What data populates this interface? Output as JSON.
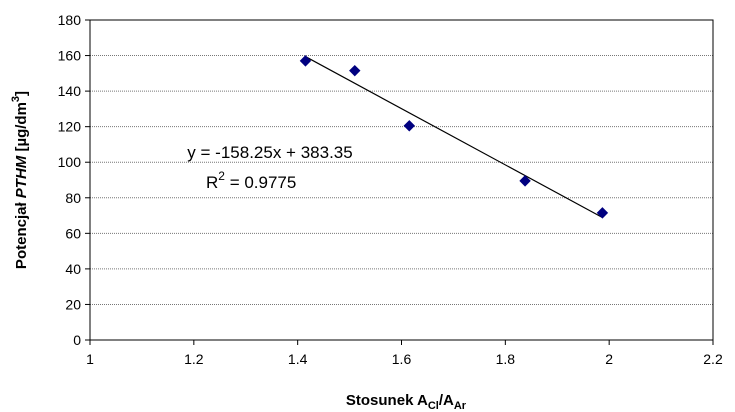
{
  "chart_data": {
    "type": "scatter",
    "x": [
      1.415,
      1.51,
      1.615,
      1.838,
      1.987
    ],
    "y": [
      157,
      151.5,
      120.5,
      89.5,
      71.5
    ],
    "xlim": [
      1,
      2.2
    ],
    "ylim": [
      0,
      180
    ],
    "x_ticks": [
      1,
      1.2,
      1.4,
      1.6,
      1.8,
      2,
      2.2
    ],
    "x_tick_labels": [
      "1",
      "1.2",
      "1.4",
      "1.6",
      "1.8",
      "2",
      "2.2"
    ],
    "y_ticks": [
      0,
      20,
      40,
      60,
      80,
      100,
      120,
      140,
      160,
      180
    ],
    "y_tick_labels": [
      "0",
      "20",
      "40",
      "60",
      "80",
      "100",
      "120",
      "140",
      "160",
      "180"
    ],
    "xlabel": {
      "main": "Stosunek A",
      "sub1": "Cl",
      "mid": "/A",
      "sub2": "Ar"
    },
    "ylabel": {
      "pre": "Potencjał ",
      "italic": "PTHM",
      "post": " [µg/dm",
      "sup": "3",
      "end": "]"
    },
    "grid": {
      "horizontal": true,
      "vertical": false
    },
    "marker": {
      "shape": "diamond",
      "color": "#000080"
    },
    "trendline": {
      "slope": -158.25,
      "intercept": 383.35,
      "x_from": 1.415,
      "x_to": 1.987,
      "color": "#000000"
    },
    "annotations": {
      "equation": "y = -158.25x + 383.35",
      "r2_base": "R",
      "r2_sup": "2",
      "r2_value": " = 0.9775"
    }
  }
}
